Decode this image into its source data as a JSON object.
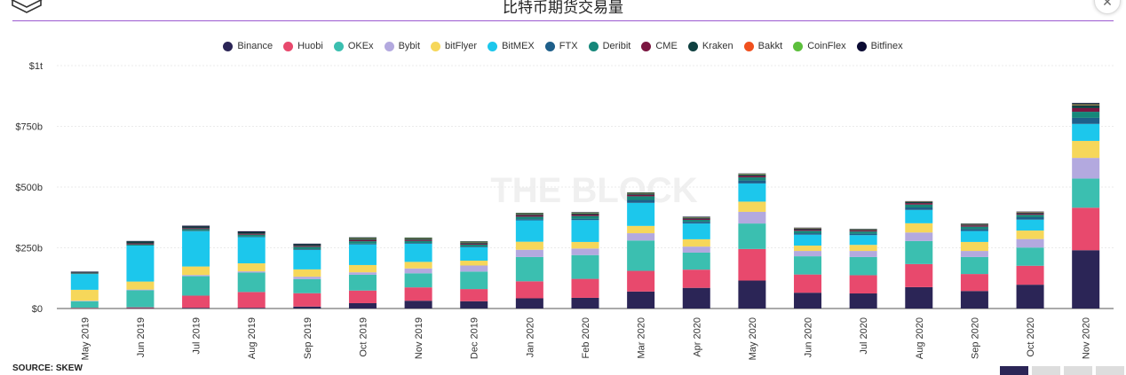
{
  "header": {
    "title": "比特币期货交易量"
  },
  "footer": {
    "source": "SOURCE: SKEW"
  },
  "watermark": "THE BLOCK",
  "chart_data": {
    "type": "bar",
    "stacked": true,
    "title": "比特币期货交易量",
    "xlabel": "",
    "ylabel": "",
    "ylim": [
      0,
      1000
    ],
    "y_unit": "billions USD",
    "y_ticks": [
      0,
      250,
      500,
      750,
      1000
    ],
    "y_tick_labels": [
      "$0",
      "$250b",
      "$500b",
      "$750b",
      "$1t"
    ],
    "grid": true,
    "legend_position": "top",
    "categories": [
      "May 2019",
      "Jun 2019",
      "Jul 2019",
      "Aug 2019",
      "Sep 2019",
      "Oct 2019",
      "Nov 2019",
      "Dec 2019",
      "Jan 2020",
      "Feb 2020",
      "Mar 2020",
      "Apr 2020",
      "May 2020",
      "Jun 2020",
      "Jul 2020",
      "Aug 2020",
      "Sep 2020",
      "Oct 2020",
      "Nov 2020"
    ],
    "series": [
      {
        "name": "Binance",
        "color": "#2b2556",
        "values": [
          1,
          2,
          3,
          3,
          8,
          22,
          32,
          30,
          42,
          44,
          70,
          85,
          115,
          65,
          62,
          88,
          72,
          98,
          240
        ]
      },
      {
        "name": "Huobi",
        "color": "#e8496d",
        "values": [
          2,
          3,
          50,
          65,
          55,
          52,
          55,
          50,
          70,
          78,
          85,
          75,
          130,
          75,
          75,
          95,
          70,
          78,
          175
        ]
      },
      {
        "name": "OKEx",
        "color": "#3bbfb0",
        "values": [
          27,
          70,
          80,
          80,
          58,
          65,
          58,
          72,
          100,
          98,
          125,
          70,
          105,
          75,
          75,
          95,
          70,
          75,
          120
        ]
      },
      {
        "name": "Bybit",
        "color": "#b3a9df",
        "values": [
          2,
          3,
          5,
          5,
          10,
          10,
          20,
          25,
          30,
          27,
          30,
          25,
          48,
          22,
          25,
          35,
          25,
          35,
          85
        ]
      },
      {
        "name": "bitFlyer",
        "color": "#f6d75a",
        "values": [
          45,
          33,
          35,
          33,
          30,
          30,
          27,
          20,
          33,
          27,
          30,
          30,
          42,
          22,
          25,
          38,
          37,
          35,
          70
        ]
      },
      {
        "name": "BitMEX",
        "color": "#1cc7ec",
        "values": [
          65,
          148,
          145,
          108,
          80,
          85,
          75,
          55,
          88,
          90,
          95,
          65,
          75,
          45,
          40,
          55,
          45,
          45,
          70
        ]
      },
      {
        "name": "FTX",
        "color": "#1e5f8a",
        "values": [
          0,
          0,
          2,
          2,
          3,
          3,
          3,
          3,
          5,
          5,
          12,
          7,
          12,
          6,
          6,
          10,
          8,
          10,
          25
        ]
      },
      {
        "name": "Deribit",
        "color": "#16877a",
        "values": [
          3,
          5,
          7,
          8,
          10,
          10,
          8,
          8,
          10,
          12,
          15,
          8,
          13,
          10,
          9,
          12,
          10,
          10,
          25
        ]
      },
      {
        "name": "CME",
        "color": "#7a1640",
        "values": [
          2,
          4,
          4,
          4,
          4,
          5,
          4,
          4,
          6,
          6,
          6,
          5,
          6,
          5,
          4,
          6,
          5,
          5,
          15
        ]
      },
      {
        "name": "Kraken",
        "color": "#0f4040",
        "values": [
          3,
          8,
          6,
          6,
          6,
          5,
          5,
          5,
          5,
          5,
          5,
          4,
          5,
          4,
          3,
          4,
          4,
          4,
          12
        ]
      },
      {
        "name": "Bakkt",
        "color": "#f0501e",
        "values": [
          0,
          0,
          0,
          0,
          0,
          1,
          1,
          1,
          1,
          1,
          1,
          1,
          1,
          1,
          1,
          1,
          1,
          1,
          2
        ]
      },
      {
        "name": "CoinFlex",
        "color": "#5cbf3c",
        "values": [
          0,
          0,
          0,
          0,
          0,
          2,
          2,
          2,
          2,
          2,
          2,
          1,
          2,
          1,
          1,
          1,
          1,
          1,
          2
        ]
      },
      {
        "name": "Bitfinex",
        "color": "#0b0b33",
        "values": [
          2,
          2,
          4,
          4,
          3,
          3,
          2,
          2,
          2,
          2,
          2,
          2,
          2,
          2,
          2,
          2,
          2,
          2,
          5
        ]
      }
    ]
  }
}
